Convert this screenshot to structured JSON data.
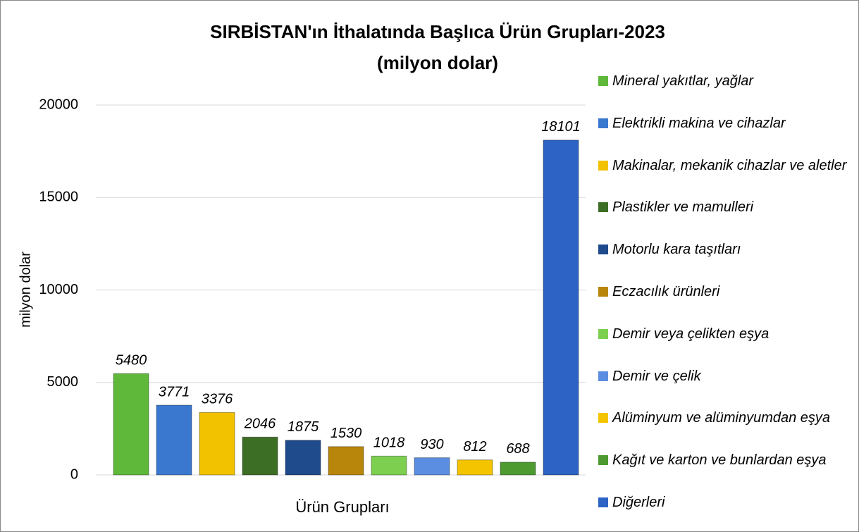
{
  "chart_data": {
    "type": "bar",
    "title": "SIRBİSTAN'ın İthalatında Başlıca Ürün Grupları-2023",
    "subtitle": "(milyon dolar)",
    "y_label": "milyon dolar",
    "x_label": "Ürün Grupları",
    "categories": [
      "Mineral yakıtlar, yağlar",
      "Elektrikli makina ve cihazlar",
      "Makinalar, mekanik cihazlar ve aletler",
      "Plastikler ve mamulleri",
      "Motorlu kara taşıtları",
      "Eczacılık ürünleri",
      "Demir veya çelikten eşya",
      "Demir ve çelik",
      "Alüminyum ve alüminyumdan eşya",
      "Kağıt ve karton ve bunlardan eşya",
      "Diğerleri"
    ],
    "values": [
      5480,
      3771,
      3376,
      2046,
      1875,
      1530,
      1018,
      930,
      812,
      688,
      18101
    ],
    "colors": [
      "#5fb83a",
      "#3a78d0",
      "#f2c200",
      "#3d6e25",
      "#1f4a8c",
      "#b8860b",
      "#7ccf4f",
      "#5b8ee0",
      "#f4c400",
      "#4c9a30",
      "#2c63c4"
    ],
    "ylim": [
      0,
      20000
    ],
    "yticks": [
      0,
      5000,
      10000,
      15000,
      20000
    ],
    "grid": true,
    "legend": "right"
  }
}
